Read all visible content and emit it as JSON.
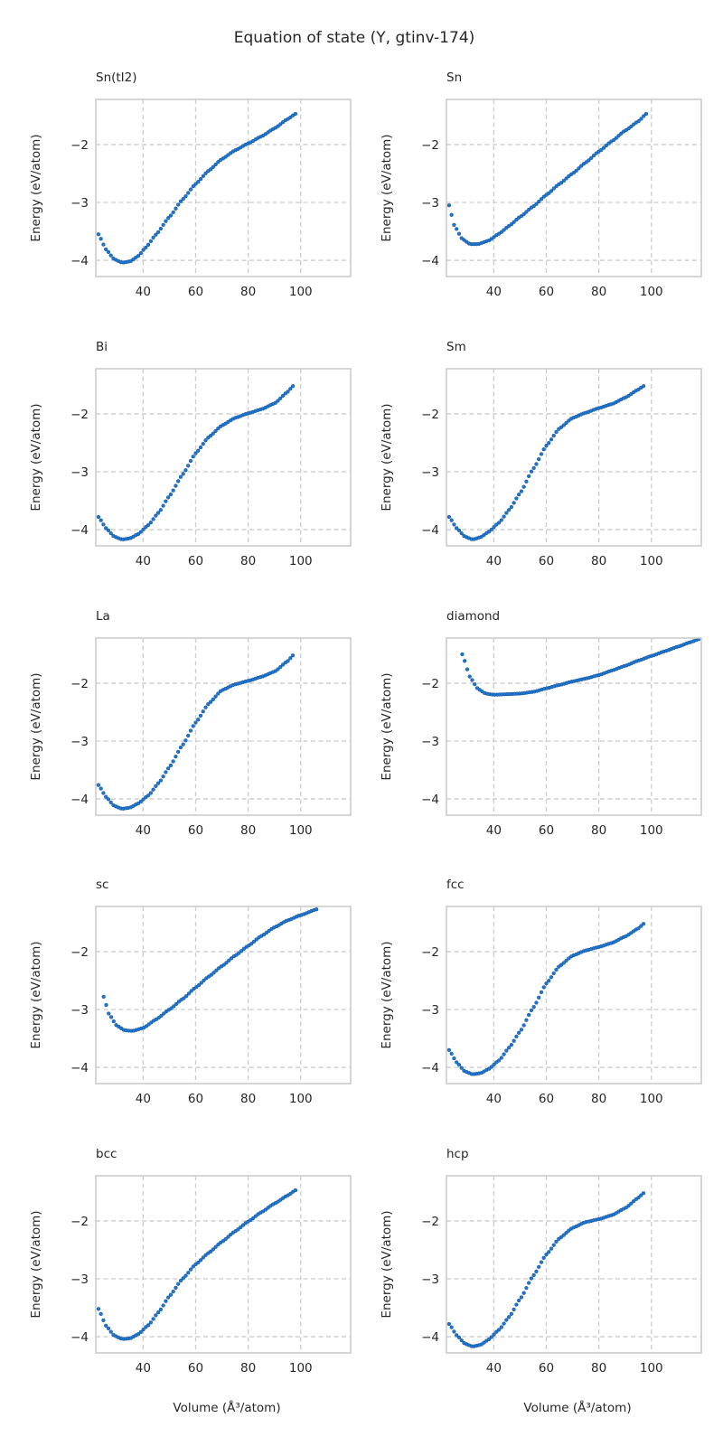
{
  "title": "Equation of state (Y, gtinv-174)",
  "marker_color": "#1f77d4",
  "marker_edge_color": "#134f8f",
  "chart_data": [
    {
      "type": "scatter",
      "title": "Sn(tI2)",
      "xlabel": "",
      "ylabel": "Energy (eV/atom)",
      "xlim": [
        22,
        119
      ],
      "ylim": [
        -4.28,
        -1.22
      ],
      "xticks": [
        40,
        60,
        80,
        100
      ],
      "yticks": [
        -4,
        -3,
        -2
      ],
      "grid": true,
      "x_range": [
        23,
        98
      ],
      "knots": [
        [
          23,
          -3.55
        ],
        [
          26,
          -3.82
        ],
        [
          29,
          -3.98
        ],
        [
          32,
          -4.04
        ],
        [
          35,
          -4.02
        ],
        [
          38,
          -3.93
        ],
        [
          41,
          -3.78
        ],
        [
          45,
          -3.55
        ],
        [
          50,
          -3.25
        ],
        [
          55,
          -2.95
        ],
        [
          60,
          -2.68
        ],
        [
          65,
          -2.45
        ],
        [
          70,
          -2.25
        ],
        [
          75,
          -2.1
        ],
        [
          80,
          -1.98
        ],
        [
          85,
          -1.86
        ],
        [
          90,
          -1.72
        ],
        [
          95,
          -1.56
        ],
        [
          98,
          -1.47
        ]
      ]
    },
    {
      "type": "scatter",
      "title": "Sn",
      "xlabel": "",
      "ylabel": "Energy (eV/atom)",
      "xlim": [
        22,
        119
      ],
      "ylim": [
        -4.28,
        -1.22
      ],
      "xticks": [
        40,
        60,
        80,
        100
      ],
      "yticks": [
        -4,
        -3,
        -2
      ],
      "grid": true,
      "x_range": [
        23,
        98
      ],
      "knots": [
        [
          23,
          -3.05
        ],
        [
          25,
          -3.4
        ],
        [
          28,
          -3.63
        ],
        [
          31,
          -3.72
        ],
        [
          34,
          -3.72
        ],
        [
          38,
          -3.66
        ],
        [
          42,
          -3.54
        ],
        [
          46,
          -3.4
        ],
        [
          50,
          -3.25
        ],
        [
          55,
          -3.07
        ],
        [
          60,
          -2.87
        ],
        [
          65,
          -2.68
        ],
        [
          70,
          -2.5
        ],
        [
          75,
          -2.31
        ],
        [
          80,
          -2.12
        ],
        [
          85,
          -1.94
        ],
        [
          90,
          -1.76
        ],
        [
          95,
          -1.6
        ],
        [
          98,
          -1.47
        ]
      ]
    },
    {
      "type": "scatter",
      "title": "Bi",
      "xlabel": "",
      "ylabel": "Energy (eV/atom)",
      "xlim": [
        22,
        119
      ],
      "ylim": [
        -4.28,
        -1.22
      ],
      "xticks": [
        40,
        60,
        80,
        100
      ],
      "yticks": [
        -4,
        -3,
        -2
      ],
      "grid": true,
      "x_range": [
        23,
        97
      ],
      "knots": [
        [
          23,
          -3.78
        ],
        [
          26,
          -3.98
        ],
        [
          29,
          -4.12
        ],
        [
          32,
          -4.17
        ],
        [
          35,
          -4.15
        ],
        [
          38,
          -4.08
        ],
        [
          42,
          -3.92
        ],
        [
          46,
          -3.7
        ],
        [
          50,
          -3.42
        ],
        [
          55,
          -3.05
        ],
        [
          60,
          -2.68
        ],
        [
          65,
          -2.4
        ],
        [
          70,
          -2.2
        ],
        [
          75,
          -2.07
        ],
        [
          80,
          -1.99
        ],
        [
          85,
          -1.92
        ],
        [
          90,
          -1.82
        ],
        [
          95,
          -1.62
        ],
        [
          97,
          -1.52
        ]
      ]
    },
    {
      "type": "scatter",
      "title": "Sm",
      "xlabel": "",
      "ylabel": "Energy (eV/atom)",
      "xlim": [
        22,
        119
      ],
      "ylim": [
        -4.28,
        -1.22
      ],
      "xticks": [
        40,
        60,
        80,
        100
      ],
      "yticks": [
        -4,
        -3,
        -2
      ],
      "grid": true,
      "x_range": [
        23,
        97
      ],
      "knots": [
        [
          23,
          -3.78
        ],
        [
          26,
          -3.98
        ],
        [
          29,
          -4.12
        ],
        [
          32,
          -4.17
        ],
        [
          35,
          -4.13
        ],
        [
          38,
          -4.04
        ],
        [
          42,
          -3.88
        ],
        [
          46,
          -3.65
        ],
        [
          50,
          -3.37
        ],
        [
          55,
          -2.95
        ],
        [
          60,
          -2.55
        ],
        [
          65,
          -2.25
        ],
        [
          70,
          -2.07
        ],
        [
          75,
          -1.98
        ],
        [
          80,
          -1.9
        ],
        [
          85,
          -1.83
        ],
        [
          90,
          -1.72
        ],
        [
          95,
          -1.58
        ],
        [
          97,
          -1.52
        ]
      ]
    },
    {
      "type": "scatter",
      "title": "La",
      "xlabel": "",
      "ylabel": "Energy (eV/atom)",
      "xlim": [
        22,
        119
      ],
      "ylim": [
        -4.28,
        -1.22
      ],
      "xticks": [
        40,
        60,
        80,
        100
      ],
      "yticks": [
        -4,
        -3,
        -2
      ],
      "grid": true,
      "x_range": [
        23,
        97
      ],
      "knots": [
        [
          23,
          -3.76
        ],
        [
          26,
          -3.97
        ],
        [
          29,
          -4.12
        ],
        [
          32,
          -4.17
        ],
        [
          35,
          -4.15
        ],
        [
          38,
          -4.08
        ],
        [
          42,
          -3.94
        ],
        [
          46,
          -3.72
        ],
        [
          50,
          -3.45
        ],
        [
          55,
          -3.07
        ],
        [
          60,
          -2.68
        ],
        [
          65,
          -2.35
        ],
        [
          70,
          -2.12
        ],
        [
          75,
          -2.02
        ],
        [
          80,
          -1.96
        ],
        [
          85,
          -1.89
        ],
        [
          90,
          -1.8
        ],
        [
          95,
          -1.62
        ],
        [
          97,
          -1.52
        ]
      ]
    },
    {
      "type": "scatter",
      "title": "diamond",
      "xlabel": "",
      "ylabel": "Energy (eV/atom)",
      "xlim": [
        22,
        119
      ],
      "ylim": [
        -4.28,
        -1.22
      ],
      "xticks": [
        40,
        60,
        80,
        100
      ],
      "yticks": [
        -4,
        -3,
        -2
      ],
      "grid": true,
      "x_range": [
        28,
        118
      ],
      "knots": [
        [
          28,
          -1.5
        ],
        [
          31,
          -1.9
        ],
        [
          34,
          -2.1
        ],
        [
          37,
          -2.18
        ],
        [
          40,
          -2.2
        ],
        [
          45,
          -2.19
        ],
        [
          50,
          -2.18
        ],
        [
          55,
          -2.15
        ],
        [
          60,
          -2.09
        ],
        [
          65,
          -2.03
        ],
        [
          70,
          -1.97
        ],
        [
          75,
          -1.92
        ],
        [
          80,
          -1.86
        ],
        [
          85,
          -1.78
        ],
        [
          90,
          -1.7
        ],
        [
          95,
          -1.61
        ],
        [
          100,
          -1.53
        ],
        [
          105,
          -1.45
        ],
        [
          110,
          -1.37
        ],
        [
          115,
          -1.29
        ],
        [
          118,
          -1.24
        ]
      ]
    },
    {
      "type": "scatter",
      "title": "sc",
      "xlabel": "",
      "ylabel": "Energy (eV/atom)",
      "xlim": [
        22,
        119
      ],
      "ylim": [
        -4.28,
        -1.22
      ],
      "xticks": [
        40,
        60,
        80,
        100
      ],
      "yticks": [
        -4,
        -3,
        -2
      ],
      "grid": true,
      "x_range": [
        25,
        106
      ],
      "knots": [
        [
          25,
          -2.78
        ],
        [
          27,
          -3.08
        ],
        [
          30,
          -3.28
        ],
        [
          33,
          -3.36
        ],
        [
          36,
          -3.37
        ],
        [
          40,
          -3.32
        ],
        [
          45,
          -3.17
        ],
        [
          50,
          -3
        ],
        [
          55,
          -2.82
        ],
        [
          60,
          -2.62
        ],
        [
          65,
          -2.43
        ],
        [
          70,
          -2.25
        ],
        [
          75,
          -2.07
        ],
        [
          80,
          -1.9
        ],
        [
          85,
          -1.73
        ],
        [
          90,
          -1.58
        ],
        [
          95,
          -1.46
        ],
        [
          100,
          -1.37
        ],
        [
          106,
          -1.27
        ]
      ]
    },
    {
      "type": "scatter",
      "title": "fcc",
      "xlabel": "",
      "ylabel": "Energy (eV/atom)",
      "xlim": [
        22,
        119
      ],
      "ylim": [
        -4.28,
        -1.22
      ],
      "xticks": [
        40,
        60,
        80,
        100
      ],
      "yticks": [
        -4,
        -3,
        -2
      ],
      "grid": true,
      "x_range": [
        23,
        97
      ],
      "knots": [
        [
          23,
          -3.7
        ],
        [
          26,
          -3.92
        ],
        [
          29,
          -4.07
        ],
        [
          32,
          -4.12
        ],
        [
          35,
          -4.1
        ],
        [
          38,
          -4.03
        ],
        [
          42,
          -3.88
        ],
        [
          46,
          -3.65
        ],
        [
          50,
          -3.38
        ],
        [
          55,
          -2.97
        ],
        [
          60,
          -2.55
        ],
        [
          65,
          -2.25
        ],
        [
          70,
          -2.07
        ],
        [
          75,
          -1.98
        ],
        [
          80,
          -1.92
        ],
        [
          85,
          -1.85
        ],
        [
          90,
          -1.74
        ],
        [
          95,
          -1.6
        ],
        [
          97,
          -1.52
        ]
      ]
    },
    {
      "type": "scatter",
      "title": "bcc",
      "xlabel": "Volume (Å³/atom)",
      "ylabel": "Energy (eV/atom)",
      "xlim": [
        22,
        119
      ],
      "ylim": [
        -4.28,
        -1.22
      ],
      "xticks": [
        40,
        60,
        80,
        100
      ],
      "yticks": [
        -4,
        -3,
        -2
      ],
      "grid": true,
      "x_range": [
        23,
        98
      ],
      "knots": [
        [
          23,
          -3.52
        ],
        [
          26,
          -3.82
        ],
        [
          29,
          -3.98
        ],
        [
          32,
          -4.04
        ],
        [
          35,
          -4.03
        ],
        [
          38,
          -3.96
        ],
        [
          42,
          -3.8
        ],
        [
          46,
          -3.57
        ],
        [
          50,
          -3.3
        ],
        [
          55,
          -3
        ],
        [
          60,
          -2.75
        ],
        [
          65,
          -2.55
        ],
        [
          70,
          -2.36
        ],
        [
          75,
          -2.18
        ],
        [
          80,
          -2.01
        ],
        [
          85,
          -1.85
        ],
        [
          90,
          -1.7
        ],
        [
          95,
          -1.56
        ],
        [
          98,
          -1.47
        ]
      ]
    },
    {
      "type": "scatter",
      "title": "hcp",
      "xlabel": "Volume (Å³/atom)",
      "ylabel": "Energy (eV/atom)",
      "xlim": [
        22,
        119
      ],
      "ylim": [
        -4.28,
        -1.22
      ],
      "xticks": [
        40,
        60,
        80,
        100
      ],
      "yticks": [
        -4,
        -3,
        -2
      ],
      "grid": true,
      "x_range": [
        23,
        97
      ],
      "knots": [
        [
          23,
          -3.78
        ],
        [
          26,
          -3.98
        ],
        [
          29,
          -4.12
        ],
        [
          32,
          -4.17
        ],
        [
          35,
          -4.14
        ],
        [
          38,
          -4.05
        ],
        [
          42,
          -3.88
        ],
        [
          46,
          -3.65
        ],
        [
          50,
          -3.35
        ],
        [
          55,
          -2.95
        ],
        [
          60,
          -2.58
        ],
        [
          65,
          -2.3
        ],
        [
          70,
          -2.12
        ],
        [
          75,
          -2.02
        ],
        [
          80,
          -1.97
        ],
        [
          85,
          -1.9
        ],
        [
          90,
          -1.78
        ],
        [
          95,
          -1.6
        ],
        [
          97,
          -1.52
        ]
      ]
    }
  ]
}
